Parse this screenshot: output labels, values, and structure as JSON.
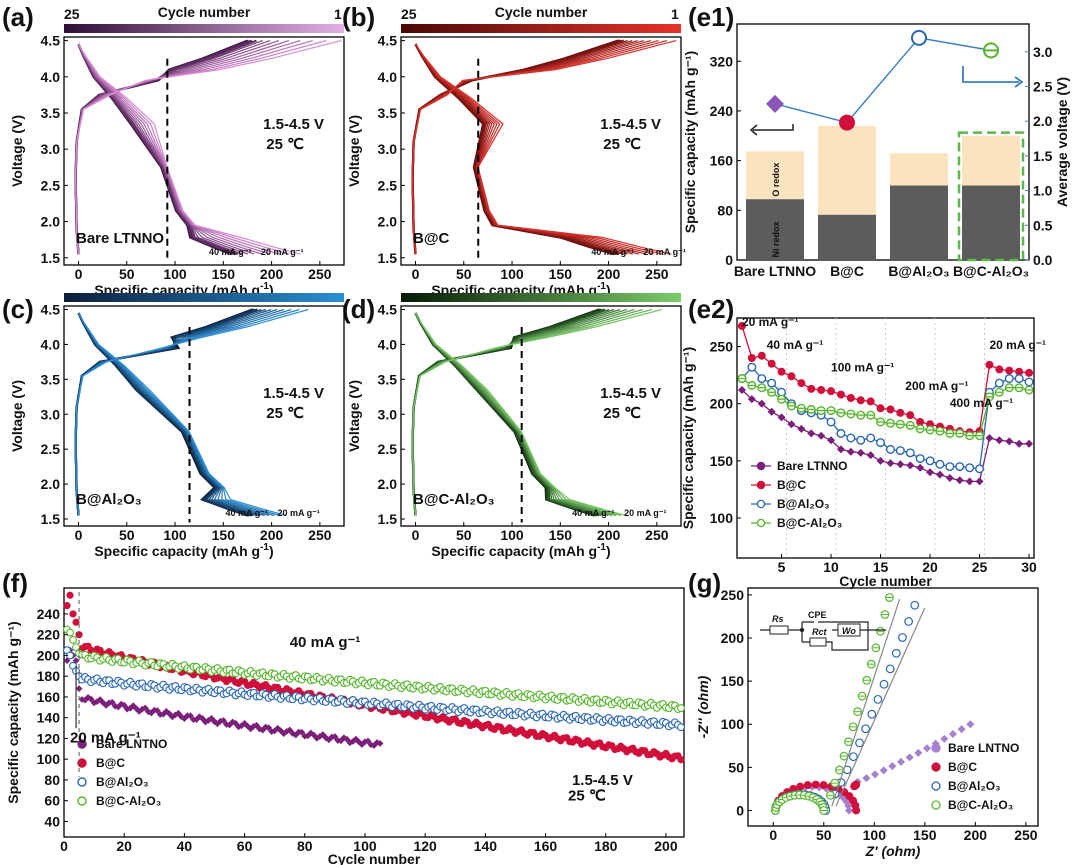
{
  "figure_labels": {
    "a": "(a)",
    "b": "(b)",
    "c": "(c)",
    "d": "(d)",
    "e1": "(e1)",
    "e2": "(e2)",
    "f": "(f)",
    "g": "(g)"
  },
  "colors": {
    "bare": "#7b1f7b",
    "bc": "#d0103a",
    "bal": "#2a67b3",
    "bcal": "#55b52a",
    "bar_ni": "#5c5c5c",
    "bar_o": "#fbe3bf",
    "voltage_axis": "#3a7fc1",
    "highlight": "#5cb84a"
  },
  "chart_data": [
    {
      "id": "a",
      "type": "line",
      "title": "Cycle number",
      "cycle_range_labels": [
        "25",
        "1"
      ],
      "gradient": [
        "#2e0f36",
        "#e4b0e6"
      ],
      "xlabel_main": "Specific capacity",
      "xlabel_unit": "(mAh g",
      "xlabel_exp": "-1",
      "xlabel_close": ")",
      "ylabel": "Voltage (V)",
      "xlim": [
        -15,
        275
      ],
      "ylim": [
        1.4,
        4.55
      ],
      "xticks": [
        0,
        50,
        100,
        150,
        200,
        250
      ],
      "yticks": [
        1.5,
        2.0,
        2.5,
        3.0,
        3.5,
        4.0,
        4.5
      ],
      "window": "1.5-4.5 V",
      "temperature": "25 ℃",
      "sample": "Bare LTNNO",
      "rate_labels": [
        "40 mA g⁻¹",
        "20 mA g⁻¹"
      ],
      "dashed_x": 92,
      "discharge_end": [
        158,
        230
      ],
      "charge_end": [
        175,
        272
      ],
      "dark": "#3a1240",
      "light": "#d88ad4"
    },
    {
      "id": "b",
      "type": "line",
      "title": "Cycle number",
      "cycle_range_labels": [
        "25",
        "1"
      ],
      "gradient": [
        "#4a0906",
        "#e5332a"
      ],
      "xlabel_main": "Specific capacity",
      "xlabel_unit": "(mAh g",
      "xlabel_exp": "-1",
      "xlabel_close": ")",
      "ylabel": "Voltage (V)",
      "xlim": [
        -15,
        275
      ],
      "ylim": [
        1.4,
        4.55
      ],
      "xticks": [
        0,
        50,
        100,
        150,
        200,
        250
      ],
      "yticks": [
        1.5,
        2.0,
        2.5,
        3.0,
        3.5,
        4.0,
        4.5
      ],
      "window": "1.5-4.5 V",
      "temperature": "25 ℃",
      "sample": "B@C",
      "rate_labels": [
        "40 mA g⁻¹",
        "20 mA g⁻¹"
      ],
      "dashed_x": 65,
      "discharge_end": [
        205,
        265
      ],
      "charge_end": [
        210,
        270
      ],
      "dark": "#5b0c08",
      "light": "#d9322c"
    },
    {
      "id": "c",
      "type": "line",
      "title": "",
      "gradient": [
        "#0d1e3a",
        "#2a8fd4"
      ],
      "xlabel_main": "Specific capacity",
      "xlabel_unit": "(mAh g",
      "xlabel_exp": "-1",
      "xlabel_close": ")",
      "ylabel": "Voltage (V)",
      "xlim": [
        -15,
        275
      ],
      "ylim": [
        1.4,
        4.55
      ],
      "xticks": [
        0,
        50,
        100,
        150,
        200,
        250
      ],
      "yticks": [
        1.5,
        2.0,
        2.5,
        3.0,
        3.5,
        4.0,
        4.5
      ],
      "window": "1.5-4.5 V",
      "temperature": "25 ℃",
      "sample": "B@Al₂O₃",
      "rate_labels": [
        "40 mA g⁻¹",
        "20 mA g⁻¹"
      ],
      "dashed_x": 115,
      "discharge_end": [
        175,
        215
      ],
      "charge_end": [
        180,
        238
      ],
      "dark": "#0c1a33",
      "light": "#2c8fd6"
    },
    {
      "id": "d",
      "type": "line",
      "title": "",
      "gradient": [
        "#061a06",
        "#7ccc6a"
      ],
      "xlabel_main": "Specific capacity",
      "xlabel_unit": "(mAh g",
      "xlabel_exp": "-1",
      "xlabel_close": ")",
      "ylabel": "Voltage (V)",
      "xlim": [
        -15,
        275
      ],
      "ylim": [
        1.4,
        4.55
      ],
      "xticks": [
        0,
        50,
        100,
        150,
        200,
        250
      ],
      "yticks": [
        1.5,
        2.0,
        2.5,
        3.0,
        3.5,
        4.0,
        4.5
      ],
      "window": "1.5-4.5 V",
      "temperature": "25 ℃",
      "sample": "B@C-Al₂O₃",
      "rate_labels": [
        "40 mA g⁻¹",
        "20 mA g⁻¹"
      ],
      "dashed_x": 110,
      "discharge_end": [
        185,
        218
      ],
      "charge_end": [
        190,
        255
      ],
      "dark": "#0b2a0b",
      "light": "#76c466"
    },
    {
      "id": "e1",
      "type": "bar",
      "categories": [
        "Bare LTNNO",
        "B@C",
        "B@Al₂O₃",
        "B@C-Al₂O₃"
      ],
      "ni_redox": [
        98,
        73,
        120,
        120
      ],
      "o_redox": [
        77,
        143,
        52,
        80
      ],
      "average_voltage": [
        2.25,
        1.98,
        3.2,
        3.02
      ],
      "marker_shapes": [
        "diamond",
        "circle",
        "circle-open",
        "circle-bar"
      ],
      "bar_labels": [
        "Ni redox",
        "O redox"
      ],
      "ylabel": "Specific capacity (mAh g⁻¹)",
      "y2label": "Average voltage (V)",
      "ylim": [
        0,
        380
      ],
      "yticks": [
        0,
        80,
        160,
        240,
        320
      ],
      "y2lim": [
        0,
        3.4
      ],
      "y2ticks": [
        0,
        0.5,
        1.0,
        1.5,
        2.0,
        2.5,
        3.0
      ]
    },
    {
      "id": "e2",
      "type": "line",
      "xlabel": "Cycle number",
      "ylabel": "Specific capacity (mAh g⁻¹)",
      "xlim": [
        0.5,
        30.5
      ],
      "ylim": [
        65,
        275
      ],
      "xticks": [
        5,
        10,
        15,
        20,
        25,
        30
      ],
      "yticks": [
        100,
        150,
        200,
        250
      ],
      "rate_annotations": [
        "20 mA g⁻¹",
        "40 mA g⁻¹",
        "100 mA g⁻¹",
        "200 mA g⁻¹",
        "400 mA g⁻¹",
        "20 mA g⁻¹"
      ],
      "series": [
        {
          "name": "Bare LTNNO",
          "values": [
            212,
            204,
            200,
            193,
            188,
            182,
            178,
            174,
            172,
            168,
            160,
            158,
            157,
            155,
            150,
            148,
            147,
            146,
            144,
            140,
            138,
            135,
            133,
            132,
            132,
            170,
            168,
            167,
            165,
            165
          ]
        },
        {
          "name": "B@C",
          "values": [
            268,
            240,
            242,
            235,
            228,
            224,
            218,
            213,
            212,
            211,
            208,
            205,
            203,
            202,
            196,
            195,
            192,
            190,
            184,
            182,
            180,
            178,
            176,
            175,
            176,
            234,
            230,
            229,
            228,
            227
          ]
        },
        {
          "name": "B@Al₂O₃",
          "values": [
            222,
            232,
            222,
            218,
            210,
            200,
            194,
            192,
            190,
            184,
            174,
            170,
            168,
            170,
            166,
            160,
            159,
            157,
            152,
            150,
            147,
            145,
            145,
            144,
            143,
            210,
            218,
            222,
            222,
            219
          ]
        },
        {
          "name": "B@C-Al₂O₃",
          "values": [
            222,
            216,
            214,
            210,
            204,
            198,
            196,
            195,
            194,
            194,
            192,
            191,
            190,
            190,
            184,
            183,
            182,
            181,
            178,
            177,
            176,
            174,
            174,
            172,
            172,
            206,
            210,
            214,
            214,
            212
          ]
        }
      ]
    },
    {
      "id": "f",
      "type": "scatter",
      "xlabel": "Cycle number",
      "ylabel": "Specific capacity (mAh g⁻¹)",
      "xlim": [
        0,
        206
      ],
      "ylim": [
        25,
        265
      ],
      "xticks": [
        0,
        20,
        40,
        60,
        80,
        100,
        120,
        140,
        160,
        180,
        200
      ],
      "yticks": [
        40,
        60,
        80,
        100,
        120,
        140,
        160,
        180,
        200,
        220,
        240
      ],
      "annotations": [
        "40 mA g⁻¹",
        "20 mA g⁻¹",
        "1.5-4.5 V",
        "25 ℃"
      ],
      "series": [
        {
          "name": "Bare LNTNO",
          "cycles": 105,
          "start": [
            195,
            205,
            200,
            195,
            168
          ],
          "plateau": 160,
          "end": 114
        },
        {
          "name": "B@C",
          "cycles": 205,
          "start": [
            248,
            258,
            240,
            232,
            220
          ],
          "plateau": 210,
          "end": 101
        },
        {
          "name": "B@Al₂O₃",
          "cycles": 205,
          "start": [
            205,
            200,
            190,
            185,
            180
          ],
          "plateau": 178,
          "end": 133
        },
        {
          "name": "B@C-Al₂O₃",
          "cycles": 205,
          "start": [
            225,
            222,
            215,
            208,
            202
          ],
          "plateau": 200,
          "end": 150
        }
      ]
    },
    {
      "id": "g",
      "type": "scatter",
      "xlabel": "Z' (ohm)",
      "ylabel": "-Z'' (ohm)",
      "xlim": [
        -25,
        262
      ],
      "ylim": [
        -18,
        258
      ],
      "xticks": [
        0,
        50,
        100,
        150,
        200,
        250
      ],
      "yticks": [
        0,
        50,
        100,
        150,
        200,
        250
      ],
      "circuit_labels": [
        "Rs",
        "CPE",
        "Rct",
        "Wo"
      ],
      "series": [
        {
          "name": "Bare LNTNO",
          "semi": [
            2,
            75
          ],
          "tail": [
            [
              75,
              30
            ],
            [
              195,
              100
            ]
          ]
        },
        {
          "name": "B@C",
          "semi": [
            2,
            82
          ],
          "tail": [
            [
              80,
              28
            ],
            [
              82,
              30
            ]
          ]
        },
        {
          "name": "B@Al₂O₃",
          "semi": [
            2,
            52
          ],
          "tail": [
            [
              55,
              8
            ],
            [
              140,
              238
            ]
          ]
        },
        {
          "name": "B@C-Al₂O₃",
          "semi": [
            2,
            50
          ],
          "tail": [
            [
              52,
              6
            ],
            [
              115,
              247
            ]
          ]
        }
      ]
    }
  ]
}
